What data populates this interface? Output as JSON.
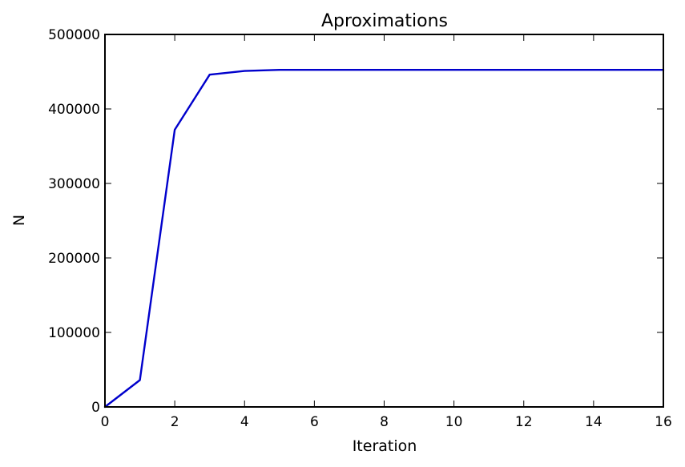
{
  "chart_data": {
    "type": "line",
    "title": "Aproximations",
    "xlabel": "Iteration",
    "ylabel": "N",
    "xlim": [
      0,
      16
    ],
    "ylim": [
      0,
      500000
    ],
    "xticks": [
      "0",
      "2",
      "4",
      "6",
      "8",
      "10",
      "12",
      "14",
      "16"
    ],
    "yticks": [
      "0",
      "100000",
      "200000",
      "300000",
      "400000",
      "500000"
    ],
    "grid": false,
    "series": [
      {
        "color": "#0000cc",
        "x": [
          0,
          1,
          2,
          3,
          4,
          5,
          6,
          7,
          8,
          9,
          10,
          11,
          12,
          13,
          14,
          15,
          16
        ],
        "y": [
          0,
          36000,
          372000,
          446000,
          451000,
          452500,
          452500,
          452500,
          452500,
          452500,
          452500,
          452500,
          452500,
          452500,
          452500,
          452500,
          452500
        ]
      }
    ]
  }
}
